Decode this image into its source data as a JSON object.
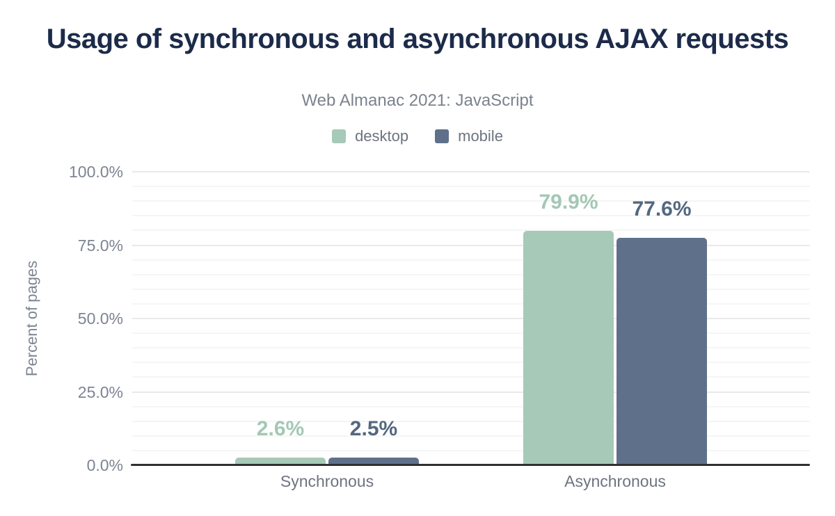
{
  "header": {
    "title": "Usage of synchronous and asynchronous AJAX requests",
    "subtitle": "Web Almanac 2021: JavaScript"
  },
  "chart_data": {
    "type": "bar",
    "title": "Usage of synchronous and asynchronous AJAX requests",
    "subtitle": "Web Almanac 2021: JavaScript",
    "categories": [
      "Synchronous",
      "Asynchronous"
    ],
    "series": [
      {
        "name": "desktop",
        "values": [
          2.6,
          79.9
        ],
        "value_labels": [
          "2.6%",
          "79.9%"
        ],
        "color": "#a7c9b8",
        "label_color": "#a3c8b5"
      },
      {
        "name": "mobile",
        "values": [
          2.5,
          77.6
        ],
        "value_labels": [
          "2.5%",
          "77.6%"
        ],
        "color": "#5f718a",
        "label_color": "#52687f"
      }
    ],
    "xlabel": "",
    "ylabel": "Percent of pages",
    "ylim": [
      0,
      100
    ],
    "yticks": [
      0,
      25,
      50,
      75,
      100
    ],
    "ytick_labels": [
      "0.0%",
      "25.0%",
      "50.0%",
      "75.0%",
      "100.0%"
    ],
    "minor_gridline_step": 5,
    "grid": true,
    "legend_position": "top"
  },
  "colors": {
    "background": "#ffffff",
    "title_text": "#1c2b4a",
    "subtitle_text": "#7b828e",
    "legend_text": "#6d7480",
    "axis_tick_text": "#7d8492",
    "axis_title_text": "#7d8492",
    "category_text": "#6d7480",
    "gridline_minor": "#f5f5f5",
    "gridline_major": "#e9e9e9",
    "baseline": "#303030"
  }
}
